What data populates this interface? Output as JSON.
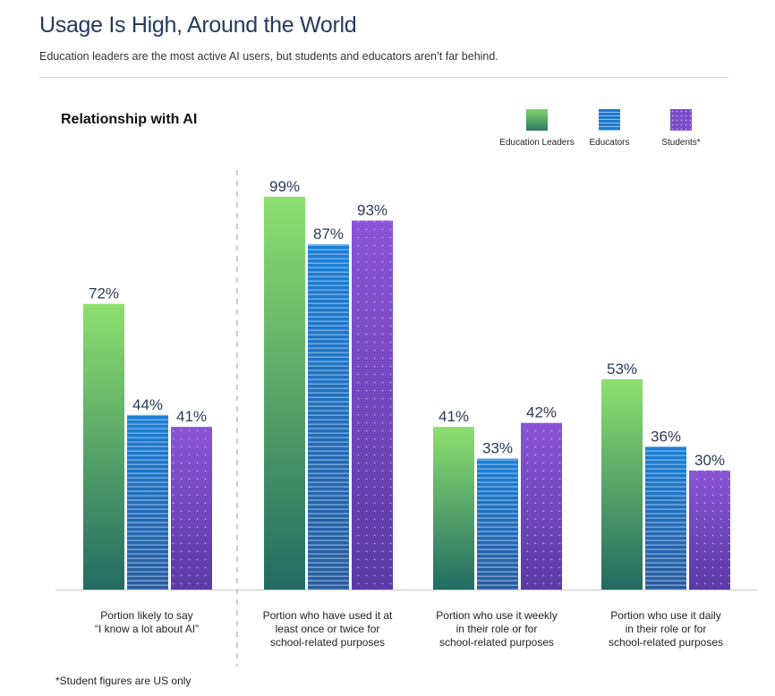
{
  "header": {
    "title": "Usage Is High, Around the World",
    "subtitle": "Education leaders are the most active AI users, but students and educators aren’t far behind."
  },
  "footnote": "*Student figures are US only",
  "colors": {
    "education_leaders_top": "#8ee06f",
    "education_leaders_bottom": "#226b62",
    "educators_top": "#1b7fd4",
    "educators_bottom": "#2d5ea0",
    "students_top": "#8a55d6",
    "students_bottom": "#5b3aa6",
    "label_text": "#2b3a55"
  },
  "chart_data": {
    "type": "bar",
    "title": "Relationship with AI",
    "xlabel": "",
    "ylabel": "",
    "ylim": [
      0,
      100
    ],
    "grid": false,
    "legend_position": "top-right",
    "categories": [
      "Portion likely to say “I know a lot about AI”",
      "Portion who have used it at least once or twice for school-related purposes",
      "Portion who use it weekly in their role or for school-related purposes",
      "Portion who use it daily in their role or for school-related purposes"
    ],
    "category_lines": [
      [
        "Portion likely to say",
        "“I know a lot about AI”"
      ],
      [
        "Portion who have used it at",
        "least once or twice for",
        "school-related purposes"
      ],
      [
        "Portion who use it weekly",
        "in their role or for",
        "school-related purposes"
      ],
      [
        "Portion who use it daily",
        "in their role or for",
        "school-related purposes"
      ]
    ],
    "series": [
      {
        "name": "Education Leaders",
        "key": "leaders",
        "values": [
          72,
          99,
          41,
          53
        ]
      },
      {
        "name": "Educators",
        "key": "educators",
        "values": [
          44,
          87,
          33,
          36
        ]
      },
      {
        "name": "Students*",
        "key": "students",
        "values": [
          41,
          93,
          42,
          30
        ]
      }
    ],
    "value_suffix": "%"
  }
}
